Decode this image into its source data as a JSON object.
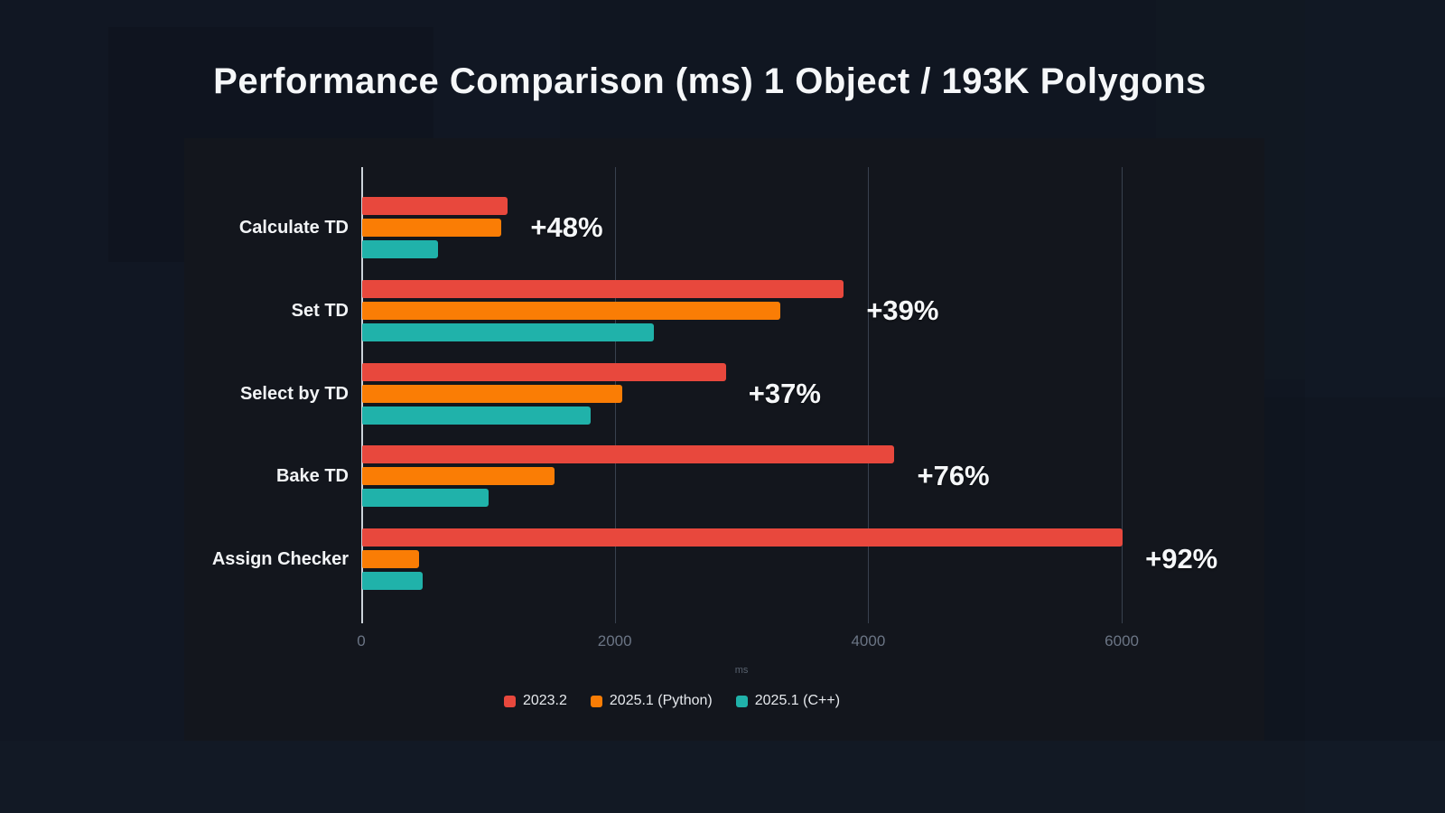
{
  "page": {
    "title": "Performance Comparison (ms) 1 Object / 193K Polygons"
  },
  "chart_data": {
    "type": "bar",
    "orientation": "horizontal",
    "title": "Performance Comparison (ms) 1 Object / 193K Polygons",
    "categories": [
      "Calculate TD",
      "Set TD",
      "Select by TD",
      "Bake TD",
      "Assign Checker"
    ],
    "series": [
      {
        "name": "2023.2",
        "color": "#e8483d",
        "values": [
          1150,
          3800,
          2870,
          4200,
          6000
        ]
      },
      {
        "name": "2025.1 (Python)",
        "color": "#fa7d05",
        "values": [
          1100,
          3300,
          2050,
          1520,
          450
        ]
      },
      {
        "name": "2025.1 (C++)",
        "color": "#20b2aa",
        "values": [
          600,
          2300,
          1800,
          1000,
          480
        ]
      }
    ],
    "annotations": [
      "+48%",
      "+39%",
      "+37%",
      "+76%",
      "+92%"
    ],
    "xlabel": "ms",
    "x_ticks": [
      0,
      2000,
      4000,
      6000
    ],
    "x_tick_labels": [
      "0",
      "2000",
      "4000",
      "6000"
    ],
    "xlim": [
      0,
      7000
    ],
    "grid": "vertical",
    "legend_position": "bottom"
  },
  "colors": {
    "page_background": "#101621",
    "panel_background": "#13161d",
    "axis_line": "#ccd2d9",
    "gridline": "#39414f",
    "tick_text": "#6b7585",
    "axis_title_text": "#58616e",
    "category_text": "#f2f4f6",
    "annotation_text": "#f5f7f9",
    "title_text": "#f5f7f9",
    "legend_text": "#e6e9ed"
  }
}
